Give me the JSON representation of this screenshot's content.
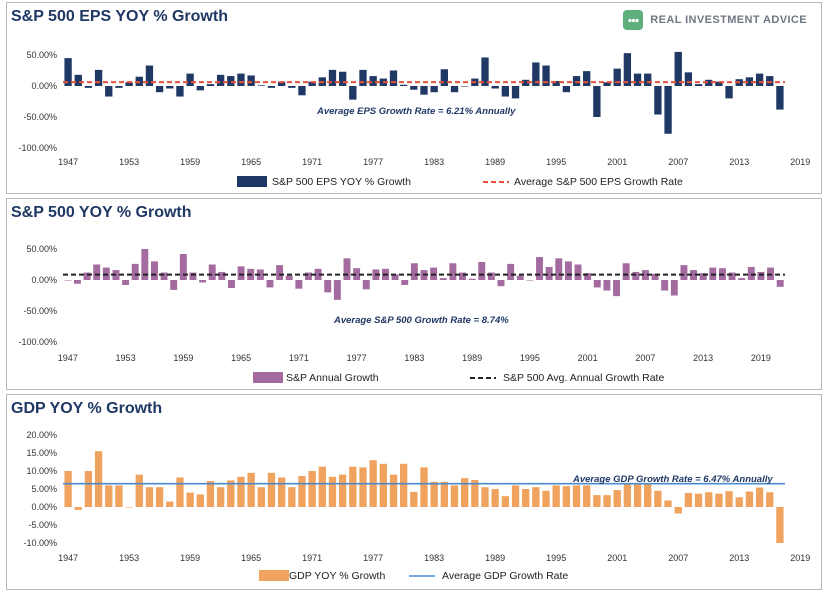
{
  "brand": {
    "name": "REAL INVESTMENT ADVICE",
    "accent": "#5fae7e"
  },
  "chart_data": [
    {
      "type": "bar",
      "title": "S&P 500 EPS YOY % Growth",
      "yticks": [
        "50.00%",
        "0.00%",
        "-50.00%",
        "-100.00%"
      ],
      "ylim": [
        -100,
        50
      ],
      "xticks": [
        "1947",
        "1953",
        "1959",
        "1965",
        "1971",
        "1977",
        "1983",
        "1989",
        "1995",
        "2001",
        "2007",
        "2013",
        "2019"
      ],
      "start_year": 1947,
      "bar_color": "#1f3864",
      "average": {
        "value": 6.21,
        "style": "dashed",
        "color": "#e8503a",
        "label": "Average EPS Growth Rate = 6.21% Annually"
      },
      "legend": [
        "S&P 500 EPS YOY % Growth",
        "Average S&P 500 EPS Growth Rate"
      ],
      "values": [
        45,
        18,
        -3,
        26,
        -17,
        -3,
        6,
        15,
        33,
        -10,
        -4,
        -17,
        20,
        -7,
        3,
        18,
        16,
        20,
        17,
        1,
        -3,
        7,
        -3,
        -15,
        7,
        14,
        26,
        23,
        -22,
        26,
        16,
        12,
        25,
        2,
        -6,
        -14,
        -10,
        27,
        -10,
        0,
        12,
        46,
        -4,
        -17,
        -20,
        10,
        38,
        33,
        8,
        -10,
        16,
        24,
        -50,
        6,
        28,
        53,
        20,
        20,
        -46,
        -77,
        55,
        22,
        3,
        10,
        7,
        -20,
        11,
        14,
        20,
        16,
        -38
      ]
    },
    {
      "type": "bar",
      "title": "S&P 500 YOY % Growth",
      "yticks": [
        "50.00%",
        "0.00%",
        "-50.00%",
        "-100.00%"
      ],
      "ylim": [
        -100,
        50
      ],
      "xticks": [
        "1947",
        "1953",
        "1959",
        "1965",
        "1971",
        "1977",
        "1983",
        "1989",
        "1995",
        "2001",
        "2007",
        "2013",
        "2019"
      ],
      "start_year": 1947,
      "bar_color": "#a36b9f",
      "average": {
        "value": 8.74,
        "style": "dashed",
        "color": "#222222",
        "label": "Average S&P 500 Growth Rate = 8.74%"
      },
      "legend": [
        "S&P Annual Growth",
        "S&P 500 Avg. Annual Growth Rate"
      ],
      "values": [
        0,
        -6,
        12,
        25,
        20,
        16,
        -8,
        26,
        50,
        30,
        12,
        -16,
        42,
        12,
        -4,
        25,
        13,
        -13,
        22,
        18,
        17,
        -12,
        24,
        7,
        -14,
        12,
        18,
        -20,
        -32,
        35,
        19,
        -15,
        17,
        18,
        9,
        -8,
        27,
        16,
        20,
        3,
        27,
        12,
        2,
        29,
        12,
        -10,
        26,
        7,
        0,
        37,
        21,
        35,
        30,
        25,
        11,
        -12,
        -17,
        -26,
        27,
        13,
        16,
        10,
        -17,
        -25,
        24,
        16,
        11,
        20,
        19,
        12,
        3,
        21,
        13,
        20,
        -11
      ]
    },
    {
      "type": "bar",
      "title": "GDP YOY % Growth",
      "yticks": [
        "20.00%",
        "15.00%",
        "10.00%",
        "5.00%",
        "0.00%",
        "-5.00%",
        "-10.00%"
      ],
      "ylim": [
        -10,
        20
      ],
      "xticks": [
        "1947",
        "1953",
        "1959",
        "1965",
        "1971",
        "1977",
        "1983",
        "1989",
        "1995",
        "2001",
        "2007",
        "2013",
        "2019"
      ],
      "start_year": 1947,
      "bar_color": "#f0a35e",
      "average": {
        "value": 6.47,
        "style": "solid",
        "color": "#4a8ad0",
        "label": "Average GDP Growth Rate = 6.47% Annually"
      },
      "legend": [
        "GDP YOY % Growth",
        "Average GDP Growth Rate"
      ],
      "values": [
        10.0,
        -0.8,
        10.0,
        15.5,
        6.0,
        6.0,
        0.0,
        9.0,
        5.5,
        5.5,
        1.5,
        8.2,
        4.0,
        3.5,
        7.2,
        5.5,
        7.4,
        8.4,
        9.5,
        5.5,
        9.5,
        8.2,
        5.5,
        8.6,
        10.0,
        11.2,
        8.4,
        9.0,
        11.2,
        11.0,
        13.0,
        12.0,
        9.0,
        12.0,
        4.2,
        11.0,
        7.0,
        7.0,
        6.0,
        8.0,
        7.5,
        5.5,
        5.0,
        3.0,
        6.0,
        5.0,
        5.5,
        4.5,
        6.0,
        5.8,
        6.0,
        6.0,
        3.3,
        3.3,
        4.7,
        6.4,
        6.6,
        6.5,
        4.5,
        1.8,
        -1.8,
        3.9,
        3.7,
        4.1,
        3.7,
        4.4,
        2.7,
        4.3,
        5.4,
        4.1,
        -10.0
      ]
    }
  ]
}
